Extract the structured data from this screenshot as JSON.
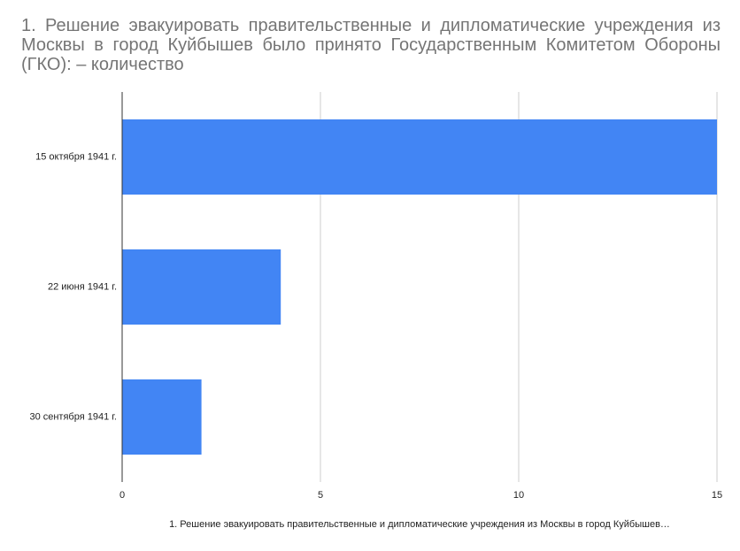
{
  "chart_data": {
    "type": "bar",
    "orientation": "horizontal",
    "title": "1. Решение эвакуировать   правительственные   и дипломатические  учреждения из  Москвы  в  город   Куйбышев  было  принято  Государственным Комитетом Обороны (ГКО): – количество",
    "xlabel": "1. Решение эвакуировать   правительственные   и дипломатические   учреждения  из  Москвы  в  город   Куйбышев…",
    "ylabel": "",
    "categories": [
      "15 октября 1941 г.",
      "22 июня 1941 г.",
      "30 сентября 1941 г."
    ],
    "series": [
      {
        "values": [
          15,
          4,
          2
        ]
      }
    ],
    "xlim": [
      0,
      15
    ],
    "xticks": [
      0,
      5,
      10,
      15
    ],
    "grid": true,
    "legend": "none",
    "bar_color": "#4285F4",
    "grid_color": "#cccccc",
    "axis_color": "#333333"
  }
}
